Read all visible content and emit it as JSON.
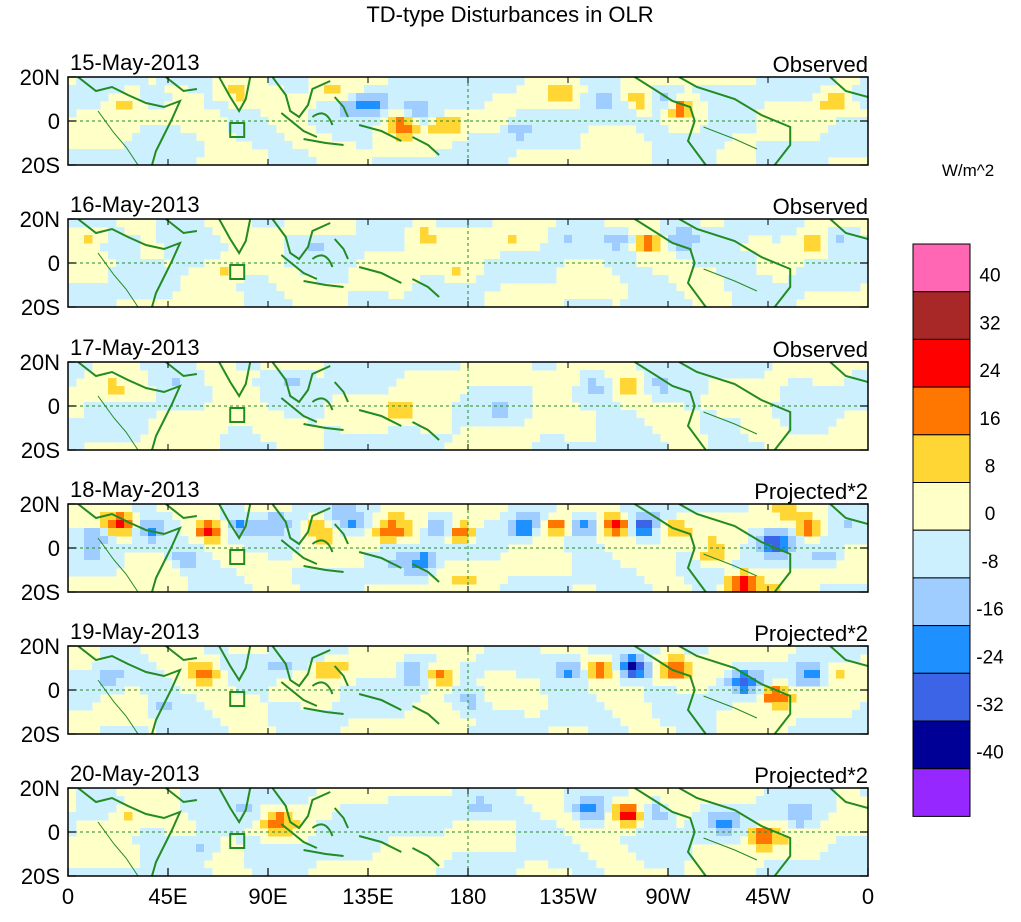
{
  "chart_data": {
    "type": "heatmap",
    "title": "TD-type Disturbances in OLR",
    "variable": "OLR anomaly",
    "colorbar": {
      "label": "W/m^2",
      "ticks": [
        "40",
        "32",
        "24",
        "16",
        "8",
        "0",
        "-8",
        "-16",
        "-24",
        "-32",
        "-40"
      ],
      "colors": [
        "#ff66b3",
        "#a82828",
        "#ff0000",
        "#ff7700",
        "#ffd633",
        "#ffffc8",
        "#cdf0ff",
        "#a0cdff",
        "#1e90ff",
        "#3c64e6",
        "#000096",
        "#9628ff"
      ]
    },
    "x_ticks": [
      "0",
      "45E",
      "90E",
      "135E",
      "180",
      "135W",
      "90W",
      "45W",
      "0"
    ],
    "y_ticks": [
      "20N",
      "0",
      "20S"
    ],
    "lat_range": [
      -20,
      20
    ],
    "lon_range": [
      0,
      360
    ],
    "panels": [
      {
        "date": "15-May-2013",
        "label": "Observed",
        "amplitude": 0.55,
        "features": [
          {
            "lon": 25,
            "lat": 8,
            "value": 14
          },
          {
            "lon": 40,
            "lat": 9,
            "value": -6
          },
          {
            "lon": 62,
            "lat": -2,
            "value": 8
          },
          {
            "lon": 76,
            "lat": 13,
            "value": 10
          },
          {
            "lon": 120,
            "lat": 13,
            "value": 8
          },
          {
            "lon": 128,
            "lat": 7,
            "value": -12
          },
          {
            "lon": 138,
            "lat": 8,
            "value": -18
          },
          {
            "lon": 150,
            "lat": -1,
            "value": 22
          },
          {
            "lon": 158,
            "lat": 4,
            "value": -14
          },
          {
            "lon": 170,
            "lat": -3,
            "value": 14
          },
          {
            "lon": 182,
            "lat": 8,
            "value": -8
          },
          {
            "lon": 203,
            "lat": -4,
            "value": -10
          },
          {
            "lon": 222,
            "lat": 13,
            "value": 10
          },
          {
            "lon": 240,
            "lat": 9,
            "value": -10
          },
          {
            "lon": 258,
            "lat": 10,
            "value": 14
          },
          {
            "lon": 268,
            "lat": 10,
            "value": -16
          },
          {
            "lon": 276,
            "lat": 6,
            "value": 20
          },
          {
            "lon": 290,
            "lat": -8,
            "value": -6
          },
          {
            "lon": 345,
            "lat": 9,
            "value": 14
          },
          {
            "lon": 358,
            "lat": 11,
            "value": -12
          }
        ]
      },
      {
        "date": "16-May-2013",
        "label": "Observed",
        "amplitude": 0.55,
        "features": [
          {
            "lon": 8,
            "lat": 12,
            "value": 12
          },
          {
            "lon": 25,
            "lat": 8,
            "value": -10
          },
          {
            "lon": 48,
            "lat": 10,
            "value": -8
          },
          {
            "lon": 70,
            "lat": -3,
            "value": 10
          },
          {
            "lon": 110,
            "lat": 8,
            "value": -8
          },
          {
            "lon": 160,
            "lat": 12,
            "value": 12
          },
          {
            "lon": 175,
            "lat": -4,
            "value": 10
          },
          {
            "lon": 200,
            "lat": 9,
            "value": 8
          },
          {
            "lon": 225,
            "lat": 12,
            "value": -8
          },
          {
            "lon": 248,
            "lat": 10,
            "value": -12
          },
          {
            "lon": 262,
            "lat": 9,
            "value": 18
          },
          {
            "lon": 276,
            "lat": 11,
            "value": -14
          },
          {
            "lon": 305,
            "lat": 0,
            "value": -8
          },
          {
            "lon": 335,
            "lat": 10,
            "value": 12
          },
          {
            "lon": 348,
            "lat": 11,
            "value": -14
          }
        ]
      },
      {
        "date": "17-May-2013",
        "label": "Observed",
        "amplitude": 0.5,
        "features": [
          {
            "lon": 20,
            "lat": 8,
            "value": 8
          },
          {
            "lon": 50,
            "lat": 13,
            "value": -8
          },
          {
            "lon": 65,
            "lat": -6,
            "value": 8
          },
          {
            "lon": 100,
            "lat": 12,
            "value": -10
          },
          {
            "lon": 150,
            "lat": -2,
            "value": 14
          },
          {
            "lon": 165,
            "lat": -8,
            "value": 10
          },
          {
            "lon": 195,
            "lat": -3,
            "value": -8
          },
          {
            "lon": 222,
            "lat": 12,
            "value": 10
          },
          {
            "lon": 238,
            "lat": 9,
            "value": -10
          },
          {
            "lon": 253,
            "lat": 9,
            "value": 14
          },
          {
            "lon": 266,
            "lat": 10,
            "value": -10
          },
          {
            "lon": 310,
            "lat": -10,
            "value": 8
          },
          {
            "lon": 330,
            "lat": 8,
            "value": -8
          }
        ]
      },
      {
        "date": "18-May-2013",
        "label": "Projected*2",
        "amplitude": 1.0,
        "features": [
          {
            "lon": 12,
            "lat": 6,
            "value": -16
          },
          {
            "lon": 24,
            "lat": 11,
            "value": 28
          },
          {
            "lon": 36,
            "lat": 8,
            "value": -14
          },
          {
            "lon": 52,
            "lat": -5,
            "value": -12
          },
          {
            "lon": 64,
            "lat": 8,
            "value": 24
          },
          {
            "lon": 76,
            "lat": 10,
            "value": -16
          },
          {
            "lon": 95,
            "lat": 12,
            "value": -12
          },
          {
            "lon": 113,
            "lat": 10,
            "value": 18
          },
          {
            "lon": 127,
            "lat": 11,
            "value": -16
          },
          {
            "lon": 145,
            "lat": 8,
            "value": 14
          },
          {
            "lon": 168,
            "lat": 9,
            "value": -20
          },
          {
            "lon": 176,
            "lat": 7,
            "value": 30
          },
          {
            "lon": 160,
            "lat": -6,
            "value": -16
          },
          {
            "lon": 205,
            "lat": 10,
            "value": -24
          },
          {
            "lon": 220,
            "lat": 10,
            "value": 24
          },
          {
            "lon": 232,
            "lat": 10,
            "value": -22
          },
          {
            "lon": 248,
            "lat": 10,
            "value": 30
          },
          {
            "lon": 258,
            "lat": 10,
            "value": -28
          },
          {
            "lon": 272,
            "lat": 8,
            "value": 16
          },
          {
            "lon": 290,
            "lat": -4,
            "value": 14
          },
          {
            "lon": 303,
            "lat": -16,
            "value": 30
          },
          {
            "lon": 318,
            "lat": 3,
            "value": -24
          },
          {
            "lon": 334,
            "lat": 9,
            "value": 22
          },
          {
            "lon": 342,
            "lat": -4,
            "value": -16
          }
        ]
      },
      {
        "date": "19-May-2013",
        "label": "Projected*2",
        "amplitude": 0.9,
        "features": [
          {
            "lon": 18,
            "lat": 6,
            "value": -14
          },
          {
            "lon": 42,
            "lat": -8,
            "value": -12
          },
          {
            "lon": 62,
            "lat": 8,
            "value": 20
          },
          {
            "lon": 95,
            "lat": 10,
            "value": -12
          },
          {
            "lon": 118,
            "lat": 10,
            "value": 14
          },
          {
            "lon": 155,
            "lat": 8,
            "value": -16
          },
          {
            "lon": 168,
            "lat": 6,
            "value": 28
          },
          {
            "lon": 180,
            "lat": -6,
            "value": -12
          },
          {
            "lon": 226,
            "lat": 9,
            "value": -20
          },
          {
            "lon": 240,
            "lat": 10,
            "value": 22
          },
          {
            "lon": 255,
            "lat": 10,
            "value": -32
          },
          {
            "lon": 272,
            "lat": 10,
            "value": 18
          },
          {
            "lon": 305,
            "lat": 4,
            "value": -20
          },
          {
            "lon": 318,
            "lat": -2,
            "value": 28
          },
          {
            "lon": 334,
            "lat": 6,
            "value": -18
          },
          {
            "lon": 346,
            "lat": 8,
            "value": 14
          }
        ]
      },
      {
        "date": "20-May-2013",
        "label": "Projected*2",
        "amplitude": 0.8,
        "features": [
          {
            "lon": 25,
            "lat": 6,
            "value": 12
          },
          {
            "lon": 60,
            "lat": -6,
            "value": -12
          },
          {
            "lon": 80,
            "lat": 10,
            "value": -10
          },
          {
            "lon": 95,
            "lat": 5,
            "value": 14
          },
          {
            "lon": 130,
            "lat": 10,
            "value": -12
          },
          {
            "lon": 186,
            "lat": 10,
            "value": -14
          },
          {
            "lon": 235,
            "lat": 10,
            "value": -22
          },
          {
            "lon": 252,
            "lat": 8,
            "value": 30
          },
          {
            "lon": 264,
            "lat": 9,
            "value": -22
          },
          {
            "lon": 296,
            "lat": 4,
            "value": -12
          },
          {
            "lon": 312,
            "lat": -2,
            "value": 20
          },
          {
            "lon": 330,
            "lat": 6,
            "value": -14
          }
        ]
      }
    ]
  }
}
